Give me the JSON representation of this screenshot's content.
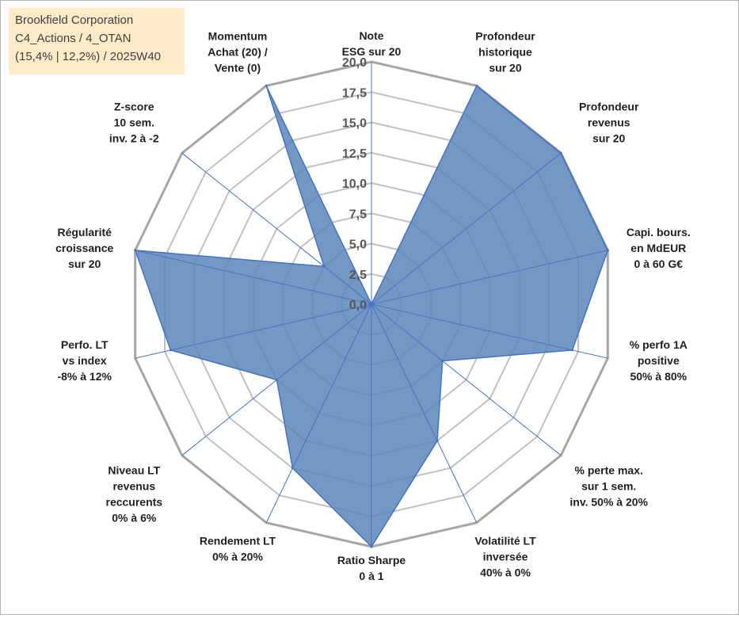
{
  "chart_data": {
    "type": "radar",
    "title_lines": [
      "Brookfield Corporation",
      "C4_Actions / 4_OTAN",
      "(15,4% | 12,2%) / 2025W40"
    ],
    "rlim": [
      0,
      20
    ],
    "ticks": [
      "0,0",
      "2,5",
      "5,0",
      "7,5",
      "10,0",
      "12,5",
      "15,0",
      "17,5",
      "20,0"
    ],
    "tick_values": [
      0,
      2.5,
      5,
      7.5,
      10,
      12.5,
      15,
      17.5,
      20
    ],
    "categories": [
      {
        "lines": [
          "Note",
          "ESG sur 20"
        ]
      },
      {
        "lines": [
          "Profondeur",
          "historique",
          "sur 20"
        ]
      },
      {
        "lines": [
          "Profondeur",
          "revenus",
          "sur 20"
        ]
      },
      {
        "lines": [
          "Capi. bours.",
          "en MdEUR",
          "0 à 60 G€"
        ]
      },
      {
        "lines": [
          "% perfo 1A",
          "positive",
          "50% à 80%"
        ]
      },
      {
        "lines": [
          "% perte max.",
          "sur 1 sem.",
          "inv. 50% à 20%"
        ]
      },
      {
        "lines": [
          "Volatilité LT",
          "inversée",
          "40% à 0%"
        ]
      },
      {
        "lines": [
          "Ratio Sharpe",
          "0 à 1"
        ]
      },
      {
        "lines": [
          "Rendement LT",
          "0% à 20%"
        ]
      },
      {
        "lines": [
          "Niveau LT",
          "revenus",
          "reccurents",
          "0% à 6%"
        ]
      },
      {
        "lines": [
          "Perfo. LT",
          "vs index",
          "-8% à 12%"
        ]
      },
      {
        "lines": [
          "Régularité",
          "croissance",
          "sur 20"
        ]
      },
      {
        "lines": [
          "Z-score",
          "10 sem.",
          "inv. 2 à -2"
        ]
      },
      {
        "lines": [
          "Momentum",
          "Achat (20) /",
          "Vente (0)"
        ]
      }
    ],
    "series": [
      {
        "name": "Brookfield Corporation",
        "values": [
          0,
          20,
          20,
          20,
          17,
          7.5,
          12.5,
          20,
          15,
          10,
          17,
          20,
          5,
          20
        ]
      }
    ],
    "colors": {
      "fill": "#5b86b8",
      "line": "#4472c4",
      "grid": "#c0c0c0",
      "spoke": "#4472c4"
    }
  }
}
